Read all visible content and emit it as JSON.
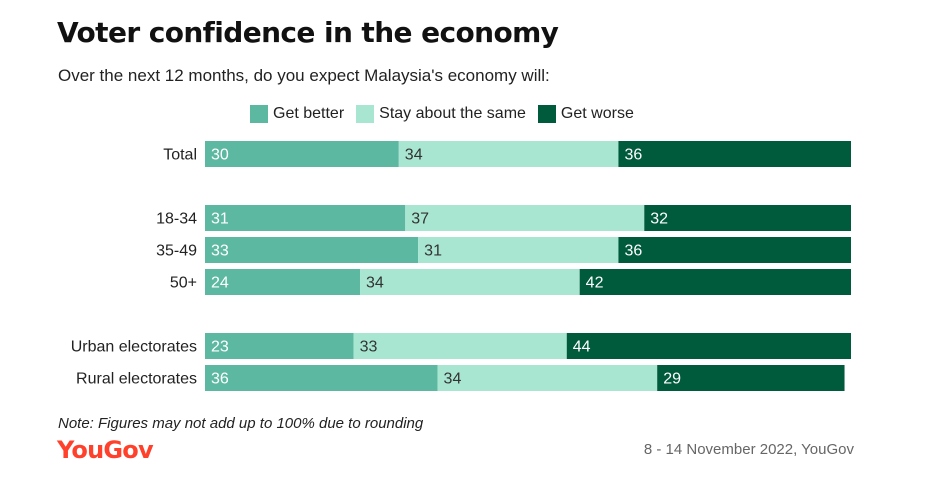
{
  "header": {
    "title": "Voter confidence in the economy",
    "subtitle": "Over the next 12 months, do you expect Malaysia's economy will:"
  },
  "footer": {
    "note": "Note: Figures may not add up to 100% due to rounding",
    "logo_text": "YouGov",
    "source": "8 - 14 November 2022, YouGov"
  },
  "colors": {
    "get_better": "#5db8a1",
    "stay_same": "#a8e6d2",
    "get_worse": "#005a3c",
    "logo": "#ff412c"
  },
  "chart_data": {
    "type": "bar",
    "orientation": "horizontal",
    "stacked": true,
    "title": "Voter confidence in the economy",
    "subtitle": "Over the next 12 months, do you expect Malaysia's economy will:",
    "legend_position": "top",
    "grid": false,
    "xlim": [
      0,
      100
    ],
    "categories": [
      "Total",
      "18-34",
      "35-49",
      "50+",
      "Urban electorates",
      "Rural electorates"
    ],
    "groups": [
      [
        "Total"
      ],
      [
        "18-34",
        "35-49",
        "50+"
      ],
      [
        "Urban electorates",
        "Rural electorates"
      ]
    ],
    "series": [
      {
        "name": "Get better",
        "color": "#5db8a1",
        "label_color": "#ffffff",
        "values": [
          30,
          31,
          33,
          24,
          23,
          36
        ]
      },
      {
        "name": "Stay about the same",
        "color": "#a8e6d2",
        "label_color": "#333333",
        "values": [
          34,
          37,
          31,
          34,
          33,
          34
        ]
      },
      {
        "name": "Get worse",
        "color": "#005a3c",
        "label_color": "#ffffff",
        "values": [
          36,
          32,
          36,
          42,
          44,
          29
        ]
      }
    ]
  }
}
